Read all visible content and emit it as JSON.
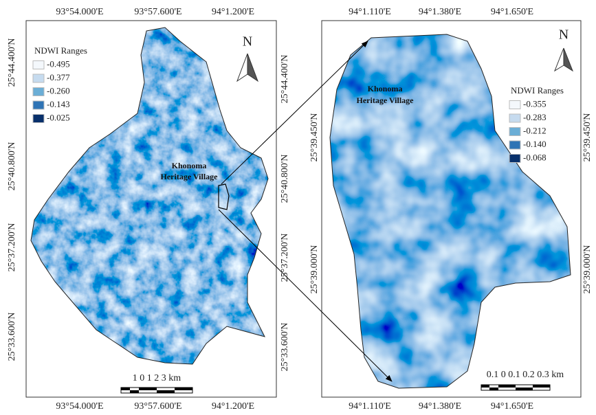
{
  "left_map": {
    "top_labels": [
      "93°54.000'E",
      "93°57.600'E",
      "94°1.200'E"
    ],
    "bottom_labels": [
      "93°54.000'E",
      "93°57.600'E",
      "94°1.200'E"
    ],
    "left_labels": [
      "25°44.400'N",
      "25°40.800'N",
      "25°37.200'N",
      "25°33.600'N"
    ],
    "right_labels": [
      "25°44.400'N",
      "25°40.800'N",
      "25°37.200'N",
      "25°33.600'N"
    ],
    "legend_title": "NDWI Ranges",
    "legend_items": [
      {
        "label": "-0.495",
        "color": "#f4f8fc"
      },
      {
        "label": "-0.377",
        "color": "#c6dbef"
      },
      {
        "label": "-0.260",
        "color": "#6baed6"
      },
      {
        "label": "-0.143",
        "color": "#2f74b5"
      },
      {
        "label": "-0.025",
        "color": "#08306b"
      }
    ],
    "village_label": [
      "Khonoma",
      "Heritage Village"
    ],
    "north": "N",
    "scale_label": "1  0  1  2  3 km"
  },
  "right_map": {
    "top_labels": [
      "94°1.110'E",
      "94°1.380'E",
      "94°1.650'E"
    ],
    "bottom_labels": [
      "94°1.110'E",
      "94°1.380'E",
      "94°1.650'E"
    ],
    "left_labels": [
      "25°39.450'N",
      "25°39.000'N"
    ],
    "right_labels": [
      "25°39.450'N",
      "25°39.000'N"
    ],
    "legend_title": "NDWI Ranges",
    "legend_items": [
      {
        "label": "-0.355",
        "color": "#f4f8fc"
      },
      {
        "label": "-0.283",
        "color": "#c6dbef"
      },
      {
        "label": "-0.212",
        "color": "#6baed6"
      },
      {
        "label": "-0.140",
        "color": "#2f74b5"
      },
      {
        "label": "-0.068",
        "color": "#08306b"
      }
    ],
    "village_label": [
      "Khonoma",
      "Heritage Village"
    ],
    "north": "N",
    "scale_label": "0.1  0  0.1 0.2 0.3 km"
  }
}
